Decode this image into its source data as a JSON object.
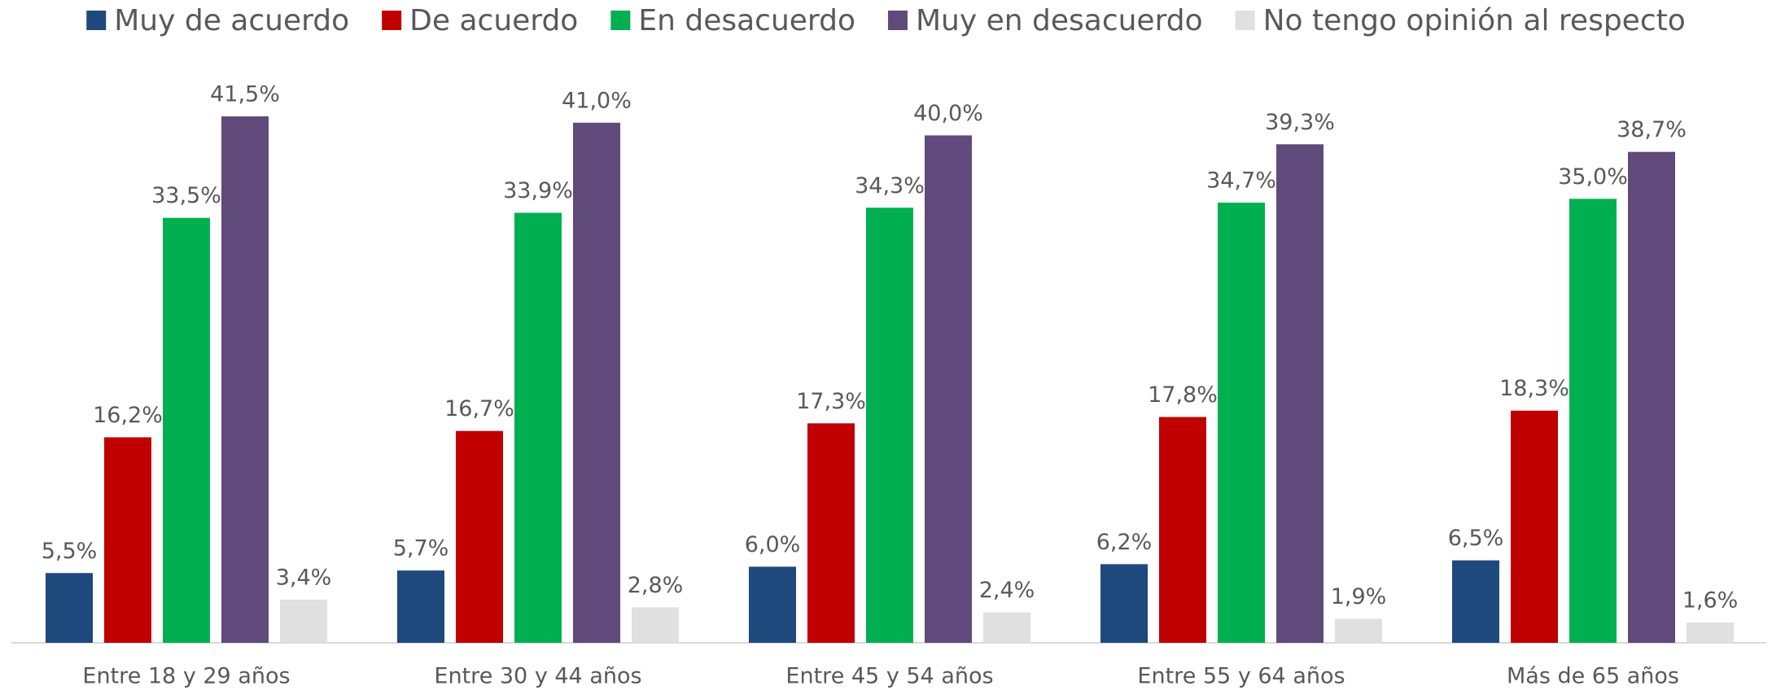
{
  "chart_data": {
    "type": "bar",
    "categories": [
      "Entre 18 y 29 años",
      "Entre 30 y 44 años",
      "Entre 45 y 54 años",
      "Entre 55 y 64 años",
      "Más de 65 años"
    ],
    "series": [
      {
        "name": "Muy de acuerdo",
        "color": "#1f497d",
        "values": [
          5.5,
          5.7,
          6.0,
          6.2,
          6.5
        ],
        "value_labels": [
          "5,5%",
          "5,7%",
          "6,0%",
          "6,2%",
          "6,5%"
        ]
      },
      {
        "name": "De acuerdo",
        "color": "#c00000",
        "values": [
          16.2,
          16.7,
          17.3,
          17.8,
          18.3
        ],
        "value_labels": [
          "16,2%",
          "16,7%",
          "17,3%",
          "17,8%",
          "18,3%"
        ]
      },
      {
        "name": "En desacuerdo",
        "color": "#00b050",
        "values": [
          33.5,
          33.9,
          34.3,
          34.7,
          35.0
        ],
        "value_labels": [
          "33,5%",
          "33,9%",
          "34,3%",
          "34,7%",
          "35,0%"
        ]
      },
      {
        "name": "Muy en desacuerdo",
        "color": "#604a7b",
        "values": [
          41.5,
          41.0,
          40.0,
          39.3,
          38.7
        ],
        "value_labels": [
          "41,5%",
          "41,0%",
          "40,0%",
          "39,3%",
          "38,7%"
        ]
      },
      {
        "name": "No tengo opinión al respecto",
        "color": "#e0e0e0",
        "values": [
          3.4,
          2.8,
          2.4,
          1.9,
          1.6
        ],
        "value_labels": [
          "3,4%",
          "2,8%",
          "2,4%",
          "1,9%",
          "1,6%"
        ]
      }
    ],
    "legend": "top"
  }
}
